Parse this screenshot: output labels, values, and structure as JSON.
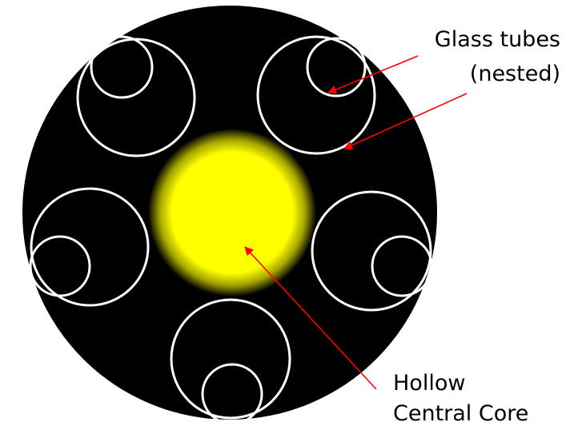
{
  "labels": {
    "glass_tubes_line1": "Glass tubes",
    "glass_tubes_line2": "(nested)",
    "core_line1": "Hollow",
    "core_line2": "Central Core"
  },
  "colors": {
    "fiber_background": "#000000",
    "tube_wall": "#ffffff",
    "core_glow": "#ffff00",
    "pointer_arrow": "#ff0000",
    "label_text": "#000000"
  }
}
